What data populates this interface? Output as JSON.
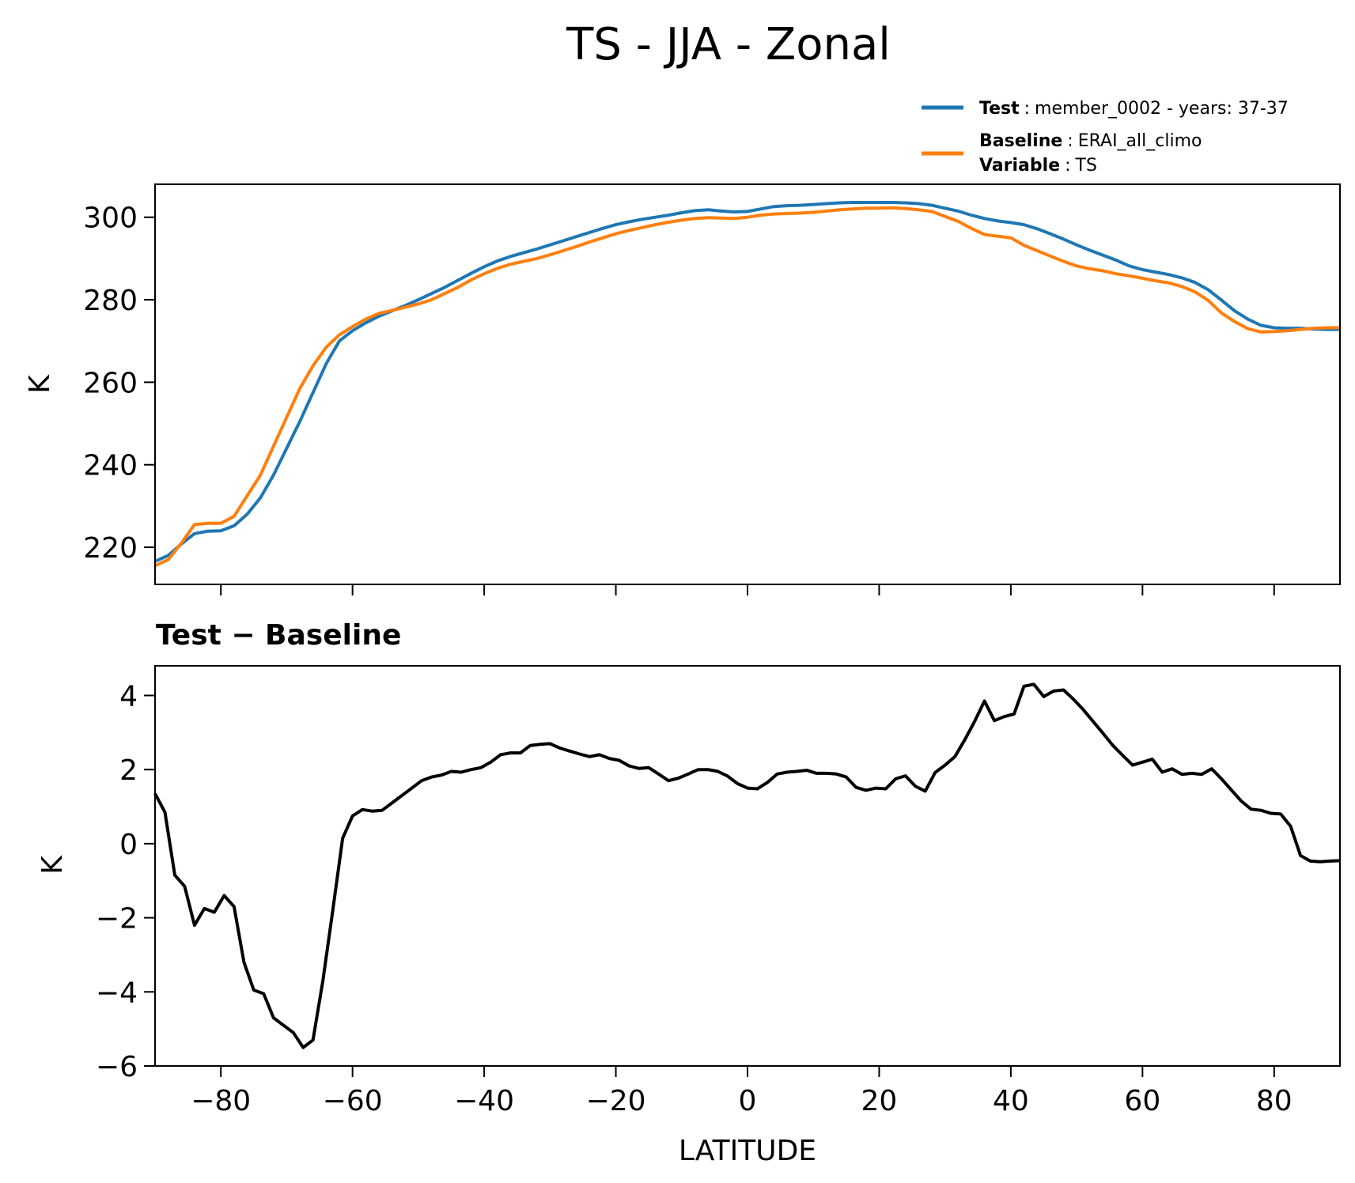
{
  "chart_data": [
    {
      "type": "line",
      "title": "TS - JJA - Zonal",
      "xlabel": "",
      "ylabel": "K",
      "xlim": [
        -90,
        90
      ],
      "ylim": [
        211,
        308
      ],
      "xticks": [
        -80,
        -60,
        -40,
        -20,
        0,
        20,
        40,
        60,
        80
      ],
      "yticks": [
        220,
        240,
        260,
        280,
        300
      ],
      "ytick_labels": [
        "220",
        "240",
        "260",
        "280",
        "300"
      ],
      "legend": {
        "placement": "top-right",
        "entries": [
          {
            "key": "Test",
            "sep": ":",
            "value": "member_0002 - years: 37-37",
            "color": "#1f77b4"
          },
          {
            "key": "Baseline",
            "sep": ":",
            "value": "ERAI_all_climo",
            "key2": "Variable",
            "sep2": ":",
            "value2": "TS",
            "color": "#ff7f0e"
          }
        ]
      },
      "x": [
        -90,
        -88,
        -86,
        -84,
        -82,
        -80,
        -78,
        -76,
        -74,
        -72,
        -70,
        -68,
        -66,
        -64,
        -62,
        -60,
        -58,
        -56,
        -54,
        -52,
        -50,
        -48,
        -46,
        -44,
        -42,
        -40,
        -38,
        -36,
        -34,
        -32,
        -30,
        -28,
        -26,
        -24,
        -22,
        -20,
        -18,
        -16,
        -14,
        -12,
        -10,
        -8,
        -6,
        -4,
        -2,
        0,
        2,
        4,
        6,
        8,
        10,
        12,
        14,
        16,
        18,
        20,
        22,
        24,
        26,
        28,
        30,
        32,
        34,
        36,
        38,
        40,
        42,
        44,
        46,
        48,
        50,
        52,
        54,
        56,
        58,
        60,
        62,
        64,
        66,
        68,
        70,
        72,
        74,
        76,
        78,
        80,
        82,
        84,
        86,
        88,
        90
      ],
      "series": [
        {
          "name": "Test",
          "color": "#1f77b4",
          "values": [
            216.6,
            218.0,
            220.8,
            223.3,
            223.9,
            224.0,
            225.2,
            228.0,
            232.0,
            237.5,
            244.0,
            250.5,
            257.5,
            264.5,
            270.0,
            272.5,
            274.4,
            276.0,
            277.3,
            278.6,
            280.0,
            281.5,
            283.0,
            284.7,
            286.4,
            288.0,
            289.4,
            290.5,
            291.4,
            292.3,
            293.3,
            294.3,
            295.3,
            296.3,
            297.3,
            298.2,
            298.9,
            299.5,
            300.0,
            300.5,
            301.1,
            301.6,
            301.8,
            301.5,
            301.3,
            301.4,
            302.0,
            302.6,
            302.8,
            302.9,
            303.1,
            303.3,
            303.5,
            303.6,
            303.6,
            303.6,
            303.6,
            303.5,
            303.3,
            302.9,
            302.2,
            301.5,
            300.5,
            299.7,
            299.1,
            298.7,
            298.2,
            297.2,
            296.0,
            294.7,
            293.3,
            292.0,
            290.8,
            289.6,
            288.2,
            287.3,
            286.7,
            286.1,
            285.3,
            284.2,
            282.4,
            279.9,
            277.3,
            275.3,
            273.8,
            273.2,
            273.1,
            273.1,
            272.9,
            272.8,
            272.8
          ]
        },
        {
          "name": "Baseline",
          "color": "#ff7f0e",
          "values": [
            215.5,
            217.0,
            221.0,
            225.5,
            225.8,
            225.8,
            227.5,
            232.5,
            237.5,
            244.5,
            251.5,
            258.5,
            264.0,
            268.5,
            271.5,
            273.5,
            275.3,
            276.7,
            277.4,
            278.2,
            279.0,
            280.0,
            281.5,
            283.0,
            284.8,
            286.3,
            287.6,
            288.6,
            289.3,
            290.0,
            290.9,
            291.9,
            292.9,
            294.0,
            295.0,
            296.0,
            296.8,
            297.5,
            298.2,
            298.8,
            299.3,
            299.7,
            299.9,
            299.8,
            299.7,
            300.0,
            300.5,
            300.8,
            300.9,
            301.0,
            301.2,
            301.5,
            301.8,
            302.0,
            302.2,
            302.2,
            302.3,
            302.1,
            301.8,
            301.4,
            300.2,
            299.0,
            297.3,
            295.8,
            295.4,
            295.0,
            293.2,
            291.9,
            290.6,
            289.3,
            288.2,
            287.5,
            287.0,
            286.3,
            285.8,
            285.2,
            284.6,
            284.1,
            283.2,
            281.9,
            279.8,
            276.8,
            274.7,
            273.0,
            272.2,
            272.3,
            272.5,
            272.8,
            273.1,
            273.2,
            273.2
          ]
        }
      ]
    },
    {
      "type": "line",
      "title": "Test − Baseline",
      "xlabel": "LATITUDE",
      "ylabel": "K",
      "xlim": [
        -90,
        90
      ],
      "ylim": [
        -6.0,
        4.8
      ],
      "xticks": [
        -80,
        -60,
        -40,
        -20,
        0,
        20,
        40,
        60,
        80
      ],
      "xtick_labels": [
        "−80",
        "−60",
        "−40",
        "−20",
        "0",
        "20",
        "40",
        "60",
        "80"
      ],
      "yticks": [
        -6,
        -4,
        -2,
        0,
        2,
        4
      ],
      "ytick_labels": [
        "−6",
        "−4",
        "−2",
        "0",
        "2",
        "4"
      ],
      "series": [
        {
          "name": "Test − Baseline",
          "color": "#000000",
          "x": [
            -90,
            -88.5,
            -87,
            -85.5,
            -84,
            -82.5,
            -81,
            -79.5,
            -78,
            -76.5,
            -75,
            -73.5,
            -72,
            -70.5,
            -69,
            -67.5,
            -66,
            -64.5,
            -63,
            -61.5,
            -60,
            -58.5,
            -57,
            -55.5,
            -54,
            -52.5,
            -51,
            -49.5,
            -48,
            -46.5,
            -45,
            -43.5,
            -42,
            -40.5,
            -39,
            -37.5,
            -36,
            -34.5,
            -33,
            -31.5,
            -30,
            -28.5,
            -27,
            -25.5,
            -24,
            -22.5,
            -21,
            -19.5,
            -18,
            -16.5,
            -15,
            -13.5,
            -12,
            -10.5,
            -9,
            -7.5,
            -6,
            -4.5,
            -3,
            -1.5,
            0,
            1.5,
            3,
            4.5,
            6,
            7.5,
            9,
            10.5,
            12,
            13.5,
            15,
            16.5,
            18,
            19.5,
            21,
            22.5,
            24,
            25.5,
            27,
            28.5,
            30,
            31.5,
            33,
            34.5,
            36,
            37.5,
            39,
            40.5,
            42,
            43.5,
            45,
            46.5,
            48,
            49.5,
            51,
            52.5,
            54,
            55.5,
            57,
            58.5,
            60,
            61.5,
            63,
            64.5,
            66,
            67.5,
            69,
            70.5,
            72,
            73.5,
            75,
            76.5,
            78,
            79.5,
            81,
            82.5,
            84,
            85.5,
            87,
            88.5,
            90
          ],
          "values": [
            1.35,
            0.85,
            -0.85,
            -1.15,
            -2.2,
            -1.75,
            -1.85,
            -1.4,
            -1.7,
            -3.2,
            -3.95,
            -4.05,
            -4.7,
            -4.9,
            -5.1,
            -5.5,
            -5.3,
            -3.7,
            -1.8,
            0.15,
            0.75,
            0.92,
            0.88,
            0.9,
            1.1,
            1.3,
            1.5,
            1.7,
            1.8,
            1.85,
            1.95,
            1.93,
            2.0,
            2.05,
            2.2,
            2.4,
            2.45,
            2.45,
            2.65,
            2.68,
            2.7,
            2.58,
            2.5,
            2.42,
            2.35,
            2.4,
            2.3,
            2.25,
            2.1,
            2.03,
            2.05,
            1.88,
            1.7,
            1.77,
            1.88,
            2.0,
            2.0,
            1.95,
            1.82,
            1.62,
            1.5,
            1.48,
            1.65,
            1.88,
            1.93,
            1.95,
            1.98,
            1.9,
            1.9,
            1.88,
            1.8,
            1.52,
            1.44,
            1.5,
            1.48,
            1.75,
            1.83,
            1.55,
            1.42,
            1.92,
            2.12,
            2.35,
            2.8,
            3.3,
            3.85,
            3.32,
            3.43,
            3.5,
            4.25,
            4.3,
            3.97,
            4.12,
            4.15,
            3.9,
            3.62,
            3.3,
            2.98,
            2.65,
            2.38,
            2.12,
            2.2,
            2.28,
            1.93,
            2.02,
            1.87,
            1.9,
            1.87,
            2.02,
            1.75,
            1.45,
            1.15,
            0.93,
            0.9,
            0.82,
            0.8,
            0.47,
            -0.32,
            -0.47,
            -0.49,
            -0.47,
            -0.46
          ]
        }
      ]
    }
  ]
}
